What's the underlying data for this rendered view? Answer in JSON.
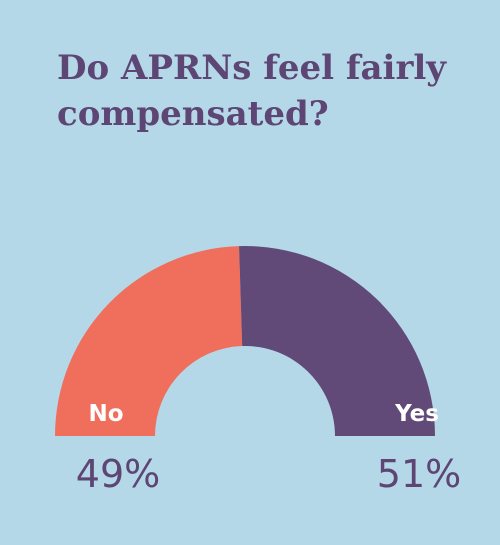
{
  "chart_data": {
    "type": "pie",
    "variant": "semi-donut",
    "title_lines": [
      "Do APRNs feel fairly",
      "compensated?"
    ],
    "slices": [
      {
        "label": "No",
        "value": 49,
        "value_label": "49%",
        "color": "#ef6f5c"
      },
      {
        "label": "Yes",
        "value": 51,
        "value_label": "51%",
        "color": "#624a78"
      }
    ],
    "text_color": "#5d4574",
    "segment_label_color": "#ffffff",
    "background": "#b5d8e9"
  }
}
